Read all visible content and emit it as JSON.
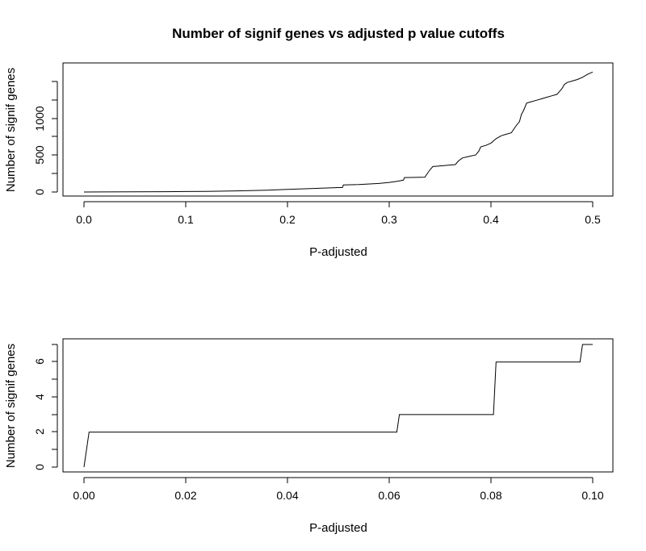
{
  "chart_data": [
    {
      "type": "line",
      "title": "Number of signif genes vs adjusted p value cutoffs",
      "xlabel": "P-adjusted",
      "ylabel": "Number of signif genes",
      "xlim": [
        0.0,
        0.5
      ],
      "ylim": [
        0,
        1700
      ],
      "xticks": [
        "0.0",
        "0.1",
        "0.2",
        "0.3",
        "0.4",
        "0.5"
      ],
      "yticks": [
        "0",
        "500",
        "1000"
      ],
      "grid": false,
      "series": [
        {
          "x": [
            0.0,
            0.02,
            0.05,
            0.08,
            0.1,
            0.12,
            0.15,
            0.18,
            0.2,
            0.22,
            0.25,
            0.254,
            0.255,
            0.27,
            0.29,
            0.3,
            0.305,
            0.31,
            0.314,
            0.315,
            0.335,
            0.34,
            0.343,
            0.345,
            0.365,
            0.368,
            0.372,
            0.378,
            0.385,
            0.388,
            0.39,
            0.395,
            0.4,
            0.405,
            0.41,
            0.415,
            0.42,
            0.425,
            0.428,
            0.43,
            0.432,
            0.435,
            0.437,
            0.44,
            0.445,
            0.45,
            0.455,
            0.46,
            0.465,
            0.47,
            0.472,
            0.475,
            0.48,
            0.485,
            0.49,
            0.495,
            0.5
          ],
          "y": [
            0,
            1,
            2,
            4,
            6,
            9,
            15,
            25,
            35,
            45,
            60,
            60,
            95,
            100,
            115,
            130,
            140,
            150,
            160,
            195,
            200,
            300,
            345,
            345,
            370,
            420,
            460,
            480,
            500,
            550,
            610,
            630,
            660,
            720,
            760,
            780,
            800,
            900,
            950,
            1050,
            1100,
            1200,
            1210,
            1220,
            1240,
            1260,
            1280,
            1300,
            1320,
            1400,
            1450,
            1480,
            1500,
            1520,
            1550,
            1590,
            1620
          ]
        }
      ]
    },
    {
      "type": "line",
      "title": "",
      "xlabel": "P-adjusted",
      "ylabel": "Number of signif genes",
      "xlim": [
        0.0,
        0.1
      ],
      "ylim": [
        0,
        7
      ],
      "xticks": [
        "0.00",
        "0.02",
        "0.04",
        "0.06",
        "0.08",
        "0.10"
      ],
      "yticks": [
        "0",
        "2",
        "4",
        "6"
      ],
      "grid": false,
      "series": [
        {
          "x": [
            0.0,
            0.001,
            0.0615,
            0.062,
            0.0805,
            0.081,
            0.0975,
            0.098,
            0.1
          ],
          "y": [
            0,
            2,
            2,
            3,
            3,
            6,
            6,
            7,
            7
          ]
        }
      ]
    }
  ]
}
